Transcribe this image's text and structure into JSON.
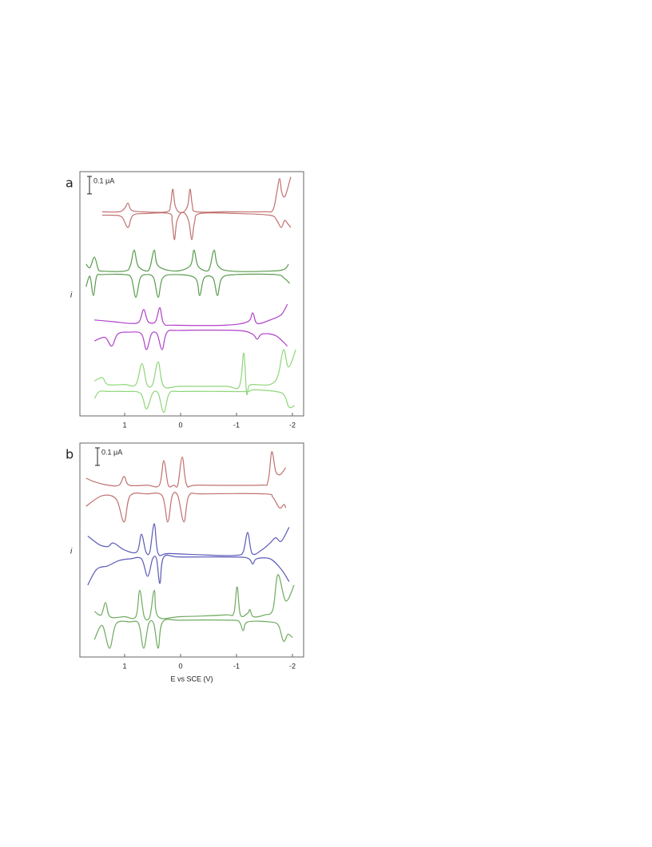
{
  "chart_data": [
    {
      "type": "line",
      "panel_label": "a",
      "ylabel": "i",
      "scale_bar": {
        "value": 0.1,
        "label": "0.1 μA"
      },
      "xlim": [
        1.8,
        -2.2
      ],
      "xticks": [
        1,
        0,
        -1,
        -2
      ],
      "ylim": [
        0,
        1.4
      ],
      "series": [
        {
          "color": "#c0706f",
          "x": [
            1.4,
            1.1,
            1.0,
            0.94,
            0.88,
            0.7,
            0.25,
            0.18,
            0.14,
            0.1,
            0.04,
            -0.06,
            -0.13,
            -0.17,
            -0.21,
            -0.28,
            -0.8,
            -1.5,
            -1.65,
            -1.72,
            -1.77,
            -1.81,
            -1.87,
            -1.97
          ],
          "values": [
            1.17,
            1.17,
            1.19,
            1.22,
            1.18,
            1.17,
            1.17,
            1.21,
            1.3,
            1.21,
            1.17,
            1.17,
            1.21,
            1.3,
            1.21,
            1.17,
            1.17,
            1.17,
            1.18,
            1.28,
            1.36,
            1.28,
            1.26,
            1.37
          ]
        },
        {
          "color": "#c0706f",
          "x": [
            1.4,
            1.2,
            1.05,
            0.94,
            0.85,
            0.6,
            0.2,
            0.15,
            0.11,
            0.07,
            0.0,
            -0.08,
            -0.15,
            -0.2,
            -0.25,
            -0.35,
            -1.0,
            -1.6,
            -1.72,
            -1.8,
            -1.86,
            -1.92,
            -1.97
          ],
          "values": [
            1.15,
            1.15,
            1.14,
            1.08,
            1.15,
            1.16,
            1.16,
            1.11,
            1.01,
            1.11,
            1.16,
            1.16,
            1.11,
            1.01,
            1.11,
            1.16,
            1.16,
            1.15,
            1.12,
            1.08,
            1.12,
            1.1,
            1.08
          ]
        },
        {
          "color": "#5a9a4e",
          "x": [
            1.69,
            1.62,
            1.54,
            1.47,
            1.4,
            1.0,
            0.9,
            0.83,
            0.76,
            0.6,
            0.54,
            0.47,
            0.4,
            0.1,
            -0.17,
            -0.24,
            -0.31,
            -0.47,
            -0.53,
            -0.6,
            -0.67,
            -0.9,
            -1.6,
            -1.85,
            -1.93
          ],
          "values": [
            0.87,
            0.85,
            0.91,
            0.84,
            0.83,
            0.83,
            0.86,
            0.95,
            0.86,
            0.83,
            0.86,
            0.95,
            0.86,
            0.83,
            0.86,
            0.95,
            0.86,
            0.83,
            0.86,
            0.95,
            0.86,
            0.83,
            0.83,
            0.84,
            0.87
          ]
        },
        {
          "color": "#5a9a4e",
          "x": [
            1.69,
            1.62,
            1.56,
            1.5,
            1.4,
            1.0,
            0.88,
            0.8,
            0.72,
            0.6,
            0.48,
            0.4,
            0.32,
            0.1,
            -0.26,
            -0.34,
            -0.42,
            -0.58,
            -0.66,
            -0.74,
            -1.0,
            -1.7,
            -1.85,
            -1.95
          ],
          "values": [
            0.74,
            0.8,
            0.69,
            0.8,
            0.81,
            0.81,
            0.79,
            0.68,
            0.79,
            0.81,
            0.79,
            0.68,
            0.79,
            0.81,
            0.79,
            0.69,
            0.79,
            0.79,
            0.69,
            0.79,
            0.81,
            0.81,
            0.79,
            0.76
          ]
        },
        {
          "color": "#b040c8",
          "x": [
            1.54,
            1.2,
            0.9,
            0.74,
            0.66,
            0.58,
            0.45,
            0.37,
            0.3,
            0.1,
            -0.8,
            -1.2,
            -1.29,
            -1.37,
            -1.6,
            -1.8,
            -1.91
          ],
          "values": [
            0.55,
            0.54,
            0.53,
            0.54,
            0.61,
            0.54,
            0.54,
            0.62,
            0.53,
            0.52,
            0.52,
            0.54,
            0.59,
            0.53,
            0.55,
            0.58,
            0.64
          ]
        },
        {
          "color": "#b040c8",
          "x": [
            1.54,
            1.35,
            1.23,
            1.12,
            0.9,
            0.7,
            0.61,
            0.52,
            0.42,
            0.33,
            0.24,
            0.0,
            -1.0,
            -1.28,
            -1.37,
            -1.46,
            -1.7,
            -1.91
          ],
          "values": [
            0.43,
            0.45,
            0.4,
            0.47,
            0.48,
            0.47,
            0.38,
            0.47,
            0.47,
            0.38,
            0.48,
            0.49,
            0.49,
            0.47,
            0.44,
            0.47,
            0.46,
            0.4
          ]
        },
        {
          "color": "#8fd67a",
          "x": [
            1.54,
            1.4,
            1.3,
            1.0,
            0.8,
            0.69,
            0.6,
            0.5,
            0.4,
            0.3,
            0.0,
            -0.8,
            -1.05,
            -1.13,
            -1.18,
            -1.22,
            -1.3,
            -1.6,
            -1.74,
            -1.84,
            -1.93,
            -2.06
          ],
          "values": [
            0.2,
            0.22,
            0.18,
            0.18,
            0.18,
            0.3,
            0.18,
            0.18,
            0.31,
            0.17,
            0.17,
            0.17,
            0.17,
            0.36,
            0.13,
            0.17,
            0.18,
            0.18,
            0.23,
            0.38,
            0.28,
            0.38
          ]
        },
        {
          "color": "#8fd67a",
          "x": [
            1.54,
            1.45,
            1.3,
            1.0,
            0.72,
            0.61,
            0.5,
            0.4,
            0.3,
            0.2,
            0.0,
            -0.8,
            -1.2,
            -1.3,
            -1.7,
            -1.85,
            -1.94,
            -2.04
          ],
          "values": [
            0.1,
            0.14,
            0.14,
            0.14,
            0.13,
            0.04,
            0.13,
            0.13,
            0.02,
            0.13,
            0.14,
            0.14,
            0.14,
            0.15,
            0.14,
            0.12,
            0.05,
            0.06
          ]
        }
      ]
    },
    {
      "type": "line",
      "panel_label": "b",
      "ylabel": "i",
      "xlabel": "E vs SCE (V)",
      "scale_bar": {
        "value": 0.1,
        "label": "0.1 μA"
      },
      "xlim": [
        1.8,
        -2.2
      ],
      "xticks": [
        1,
        0,
        -1,
        -2
      ],
      "ylim": [
        0,
        1.22
      ],
      "series": [
        {
          "color": "#c0706f",
          "x": [
            1.69,
            1.55,
            1.3,
            1.1,
            1.01,
            0.92,
            0.6,
            0.38,
            0.3,
            0.22,
            0.12,
            0.05,
            -0.03,
            -0.11,
            -0.3,
            -1.4,
            -1.56,
            -1.63,
            -1.7,
            -1.78,
            -1.88
          ],
          "values": [
            1.02,
            1.0,
            0.98,
            0.98,
            1.03,
            0.98,
            0.98,
            0.98,
            1.12,
            0.98,
            0.98,
            0.98,
            1.14,
            0.98,
            0.98,
            0.98,
            1.0,
            1.17,
            1.06,
            1.04,
            1.08
          ]
        },
        {
          "color": "#c0706f",
          "x": [
            1.69,
            1.4,
            1.15,
            1.01,
            0.9,
            0.6,
            0.33,
            0.23,
            0.15,
            0.05,
            -0.06,
            -0.15,
            -0.4,
            -1.5,
            -1.65,
            -1.77,
            -1.85,
            -1.88
          ],
          "values": [
            0.86,
            0.92,
            0.9,
            0.77,
            0.92,
            0.93,
            0.92,
            0.77,
            0.92,
            0.92,
            0.77,
            0.92,
            0.93,
            0.93,
            0.91,
            0.85,
            0.87,
            0.85
          ]
        },
        {
          "color": "#5a5ab8",
          "x": [
            1.66,
            1.45,
            1.3,
            1.2,
            1.0,
            0.78,
            0.7,
            0.62,
            0.55,
            0.47,
            0.4,
            0.2,
            -0.6,
            -1.0,
            -1.12,
            -1.2,
            -1.28,
            -1.45,
            -1.6,
            -1.7,
            -1.8,
            -1.94
          ],
          "values": [
            0.69,
            0.64,
            0.63,
            0.65,
            0.61,
            0.6,
            0.7,
            0.6,
            0.6,
            0.76,
            0.59,
            0.59,
            0.58,
            0.58,
            0.6,
            0.71,
            0.59,
            0.61,
            0.65,
            0.68,
            0.66,
            0.74
          ]
        },
        {
          "color": "#5a5ab8",
          "x": [
            1.66,
            1.5,
            1.3,
            1.1,
            0.9,
            0.7,
            0.59,
            0.5,
            0.43,
            0.37,
            0.3,
            0.0,
            -1.0,
            -1.22,
            -1.29,
            -1.36,
            -1.6,
            -1.8,
            -1.94
          ],
          "values": [
            0.41,
            0.5,
            0.52,
            0.55,
            0.56,
            0.56,
            0.46,
            0.56,
            0.56,
            0.42,
            0.57,
            0.57,
            0.57,
            0.56,
            0.53,
            0.56,
            0.56,
            0.5,
            0.43
          ]
        },
        {
          "color": "#6faa60",
          "x": [
            1.54,
            1.42,
            1.34,
            1.26,
            1.0,
            0.8,
            0.73,
            0.65,
            0.55,
            0.47,
            0.4,
            0.0,
            -0.8,
            -0.95,
            -1.01,
            -1.07,
            -1.2,
            -1.24,
            -1.3,
            -1.5,
            -1.65,
            -1.74,
            -1.88,
            -2.03
          ],
          "values": [
            0.26,
            0.24,
            0.31,
            0.23,
            0.23,
            0.23,
            0.38,
            0.23,
            0.23,
            0.38,
            0.23,
            0.23,
            0.24,
            0.25,
            0.4,
            0.24,
            0.25,
            0.27,
            0.23,
            0.24,
            0.27,
            0.47,
            0.32,
            0.41
          ]
        },
        {
          "color": "#6faa60",
          "x": [
            1.54,
            1.4,
            1.27,
            1.15,
            0.9,
            0.75,
            0.66,
            0.57,
            0.48,
            0.4,
            0.32,
            0.0,
            -0.9,
            -1.05,
            -1.12,
            -1.2,
            -1.6,
            -1.75,
            -1.84,
            -1.92,
            -2.0
          ],
          "values": [
            0.1,
            0.18,
            0.05,
            0.19,
            0.2,
            0.19,
            0.05,
            0.19,
            0.19,
            0.05,
            0.2,
            0.21,
            0.21,
            0.2,
            0.15,
            0.2,
            0.2,
            0.18,
            0.09,
            0.13,
            0.11
          ]
        }
      ]
    }
  ]
}
